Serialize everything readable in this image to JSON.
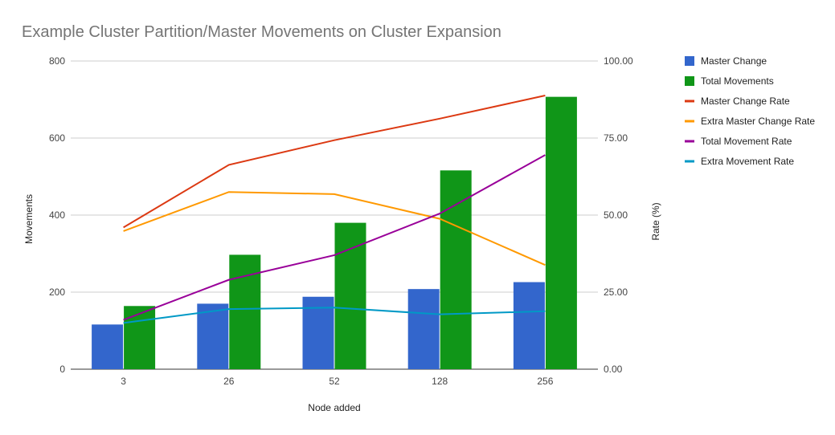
{
  "chart_data": {
    "type": "bar",
    "title": "Example Cluster Partition/Master Movements on Cluster Expansion",
    "xlabel": "Node added",
    "ylabel": "Movements",
    "y2label": "Rate (%)",
    "categories": [
      "3",
      "26",
      "52",
      "128",
      "256"
    ],
    "ylim": [
      0,
      800
    ],
    "y2lim": [
      0,
      100
    ],
    "yticks": [
      "0",
      "200",
      "400",
      "600",
      "800"
    ],
    "y2ticks": [
      "0.00",
      "25.00",
      "50.00",
      "75.00",
      "100.00"
    ],
    "grid": true,
    "legend_position": "right",
    "bar_series": [
      {
        "name": "Master Change",
        "color": "#3366cc",
        "values": [
          116,
          170,
          188,
          208,
          226
        ]
      },
      {
        "name": "Total Movements",
        "color": "#109618",
        "values": [
          164,
          297,
          380,
          516,
          707
        ]
      }
    ],
    "line_series": [
      {
        "name": "Master Change Rate",
        "color": "#dc3912",
        "axis": "right",
        "values": [
          46,
          66.3,
          74.3,
          81.3,
          88.8
        ]
      },
      {
        "name": "Extra Master Change Rate",
        "color": "#ff9900",
        "axis": "right",
        "values": [
          44.8,
          57.5,
          56.8,
          48.8,
          33.8
        ]
      },
      {
        "name": "Total Movement Rate",
        "color": "#990099",
        "axis": "right",
        "values": [
          16,
          29,
          37,
          50.5,
          69.5
        ]
      },
      {
        "name": "Extra Movement Rate",
        "color": "#0099c6",
        "axis": "right",
        "values": [
          15,
          19.5,
          20,
          17.8,
          18.8
        ]
      }
    ]
  }
}
